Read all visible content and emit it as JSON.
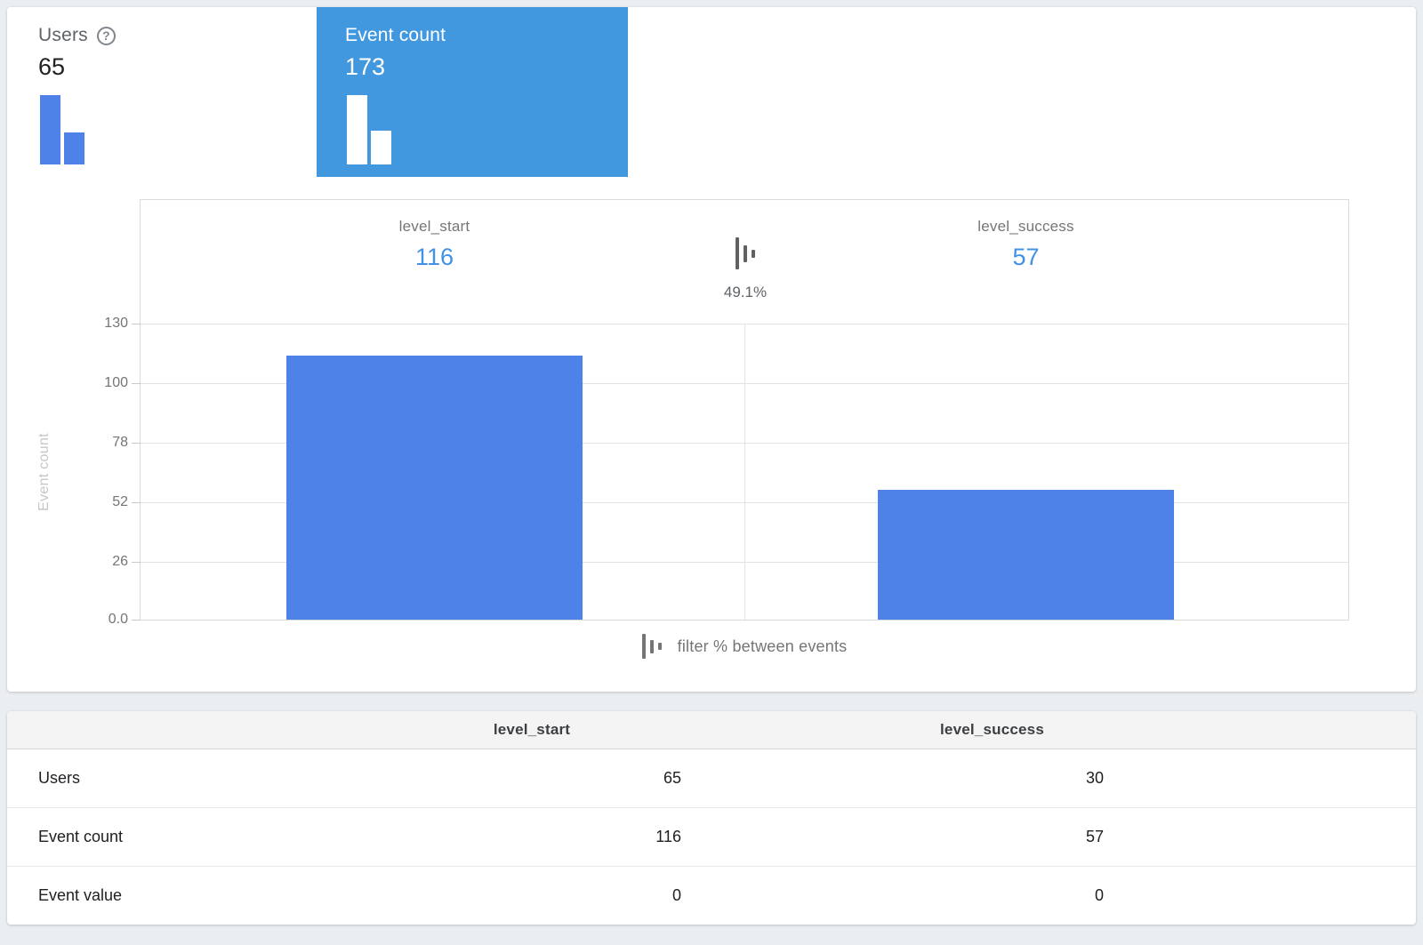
{
  "metrics": {
    "cards": [
      {
        "label": "Users",
        "value": "65",
        "selected": false,
        "mini_bars": [
          65,
          30
        ]
      },
      {
        "label": "Event count",
        "value": "173",
        "selected": true,
        "mini_bars": [
          116,
          57
        ]
      }
    ],
    "help_icon_glyph": "?",
    "selected_color": "#4298de",
    "bar_color": "#4e82e8"
  },
  "chart_data": {
    "type": "bar",
    "categories": [
      "level_start",
      "level_success"
    ],
    "values": [
      116,
      57
    ],
    "value_labels": [
      "116",
      "57"
    ],
    "title": "",
    "xlabel": "",
    "ylabel": "Event count",
    "ylim": [
      0,
      130
    ],
    "ytick_labels": [
      "130",
      "100",
      "78",
      "52",
      "26",
      "0.0"
    ],
    "grid": true,
    "bar_color": "#4e82e8",
    "value_color": "#4191e5",
    "conversion": {
      "value": "49.1%",
      "icon": "filter-bars-icon"
    },
    "legend": {
      "position": "bottom",
      "label": "filter % between events",
      "icon": "filter-bars-icon"
    }
  },
  "table": {
    "column_headers": [
      "level_start",
      "level_success"
    ],
    "rows": [
      {
        "label": "Users",
        "values": [
          "65",
          "30"
        ]
      },
      {
        "label": "Event count",
        "values": [
          "116",
          "57"
        ]
      },
      {
        "label": "Event value",
        "values": [
          "0",
          "0"
        ]
      }
    ]
  }
}
